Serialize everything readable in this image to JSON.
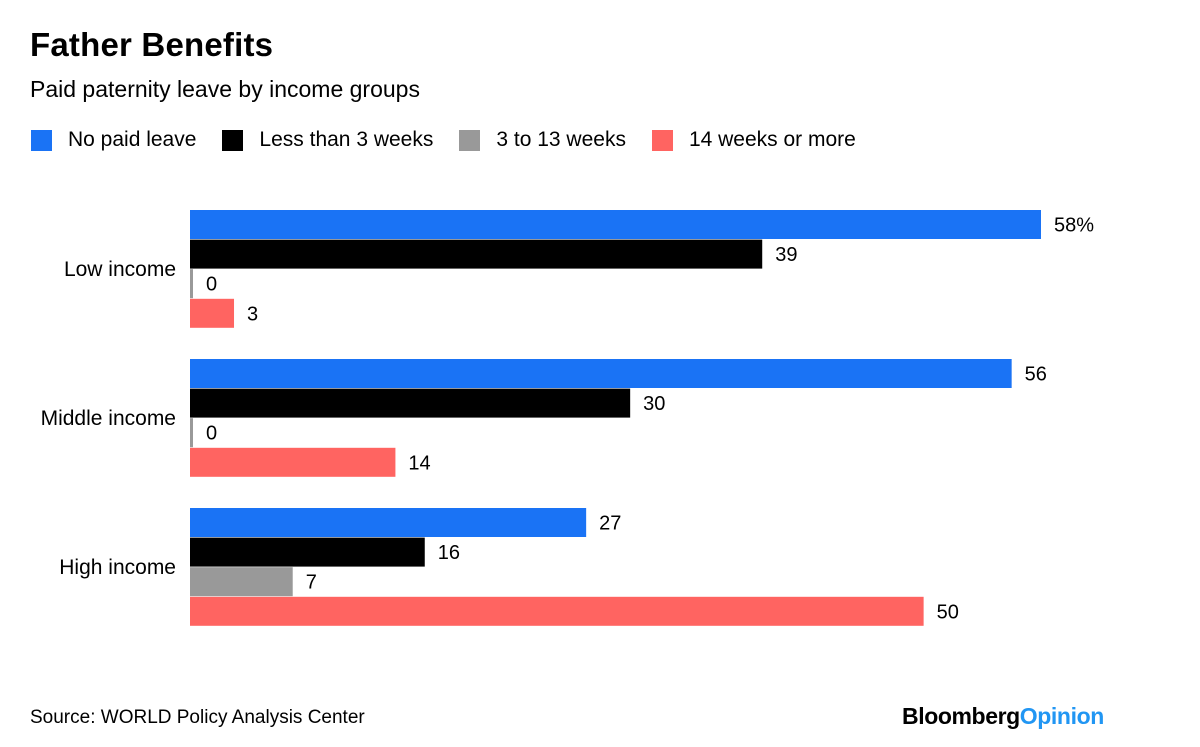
{
  "header": {
    "title": "Father Benefits",
    "subtitle": "Paid paternity leave by income groups"
  },
  "footer": {
    "source": "Source: WORLD Policy Analysis Center",
    "brand_part1": "Bloomberg",
    "brand_part2": "Opinion"
  },
  "colors": {
    "brand_blue": "#2196f3"
  },
  "chart_data": {
    "type": "bar",
    "orientation": "horizontal",
    "categories": [
      "Low income",
      "Middle income",
      "High income"
    ],
    "series": [
      {
        "name": "No paid leave",
        "color": "#1a73f5",
        "values": [
          58,
          56,
          27
        ]
      },
      {
        "name": "Less than 3 weeks",
        "color": "#000000",
        "values": [
          39,
          30,
          16
        ]
      },
      {
        "name": "3 to 13 weeks",
        "color": "#999999",
        "values": [
          0,
          0,
          7
        ]
      },
      {
        "name": "14 weeks or more",
        "color": "#ff6461",
        "values": [
          3,
          14,
          50
        ]
      }
    ],
    "value_suffix_first": "%",
    "xlim": [
      0,
      58
    ],
    "legend_position": "top-left",
    "grid": false
  }
}
